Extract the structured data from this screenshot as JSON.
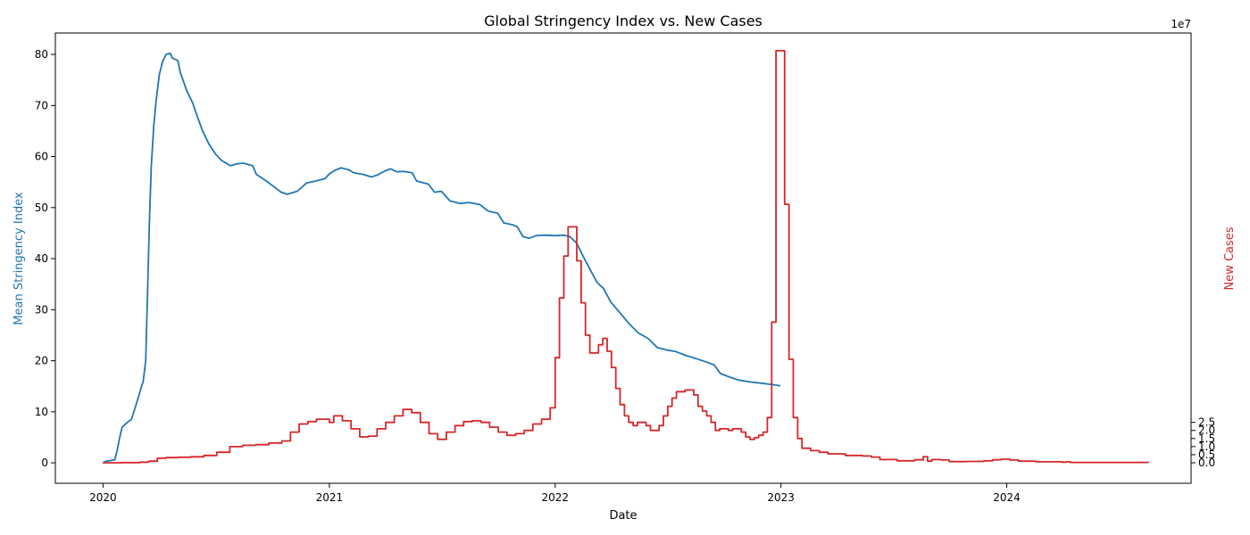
{
  "chart_data": {
    "type": "line",
    "title": "Global Stringency Index vs. New Cases",
    "xlabel": "Date",
    "ylabel_left": "Mean Stringency Index",
    "ylabel_right": "New Cases",
    "right_axis_offset_label": "1e7",
    "x_ticks": [
      "2020",
      "2021",
      "2022",
      "2023",
      "2024"
    ],
    "xlim": [
      "2019-10-16",
      "2024-10-25"
    ],
    "y_left_ticks": [
      "0",
      "10",
      "20",
      "30",
      "40",
      "50",
      "60",
      "70",
      "80"
    ],
    "ylim_left": [
      -4.0,
      84.2
    ],
    "y_right_ticks": [
      "0.0",
      "0.5",
      "1.0",
      "1.5",
      "2.0",
      "2.5"
    ],
    "ylim_right": [
      -1.27,
      26.6
    ],
    "grid": false,
    "colors": {
      "stringency": "#1f77b4",
      "cases": "#d62728"
    },
    "series": [
      {
        "axis": "left",
        "style": "line",
        "points": [
          [
            "2020-01-01",
            0
          ],
          [
            "2020-01-05",
            0.3
          ],
          [
            "2020-01-20",
            0.6
          ],
          [
            "2020-01-24",
            2.5
          ],
          [
            "2020-01-28",
            5
          ],
          [
            "2020-02-01",
            7
          ],
          [
            "2020-02-10",
            8
          ],
          [
            "2020-02-16",
            8.5
          ],
          [
            "2020-02-25",
            12
          ],
          [
            "2020-03-01",
            14
          ],
          [
            "2020-03-06",
            16
          ],
          [
            "2020-03-10",
            20
          ],
          [
            "2020-03-13",
            33
          ],
          [
            "2020-03-16",
            47
          ],
          [
            "2020-03-19",
            58
          ],
          [
            "2020-03-23",
            66
          ],
          [
            "2020-03-27",
            71
          ],
          [
            "2020-04-01",
            76
          ],
          [
            "2020-04-06",
            78.5
          ],
          [
            "2020-04-12",
            80
          ],
          [
            "2020-04-19",
            80.2
          ],
          [
            "2020-04-22",
            79.3
          ],
          [
            "2020-05-01",
            78.8
          ],
          [
            "2020-05-05",
            76.5
          ],
          [
            "2020-05-15",
            73
          ],
          [
            "2020-05-25",
            70.5
          ],
          [
            "2020-06-01",
            68
          ],
          [
            "2020-06-10",
            65
          ],
          [
            "2020-06-20",
            62.5
          ],
          [
            "2020-07-01",
            60.5
          ],
          [
            "2020-07-10",
            59.3
          ],
          [
            "2020-07-25",
            58.2
          ],
          [
            "2020-08-05",
            58.6
          ],
          [
            "2020-08-15",
            58.7
          ],
          [
            "2020-08-30",
            58.2
          ],
          [
            "2020-09-05",
            56.5
          ],
          [
            "2020-09-20",
            55.3
          ],
          [
            "2020-10-01",
            54.3
          ],
          [
            "2020-10-15",
            53
          ],
          [
            "2020-10-25",
            52.6
          ],
          [
            "2020-11-10",
            53.2
          ],
          [
            "2020-11-25",
            54.8
          ],
          [
            "2020-12-10",
            55.2
          ],
          [
            "2020-12-25",
            55.7
          ],
          [
            "2021-01-01",
            56.6
          ],
          [
            "2021-01-10",
            57.3
          ],
          [
            "2021-01-20",
            57.8
          ],
          [
            "2021-02-01",
            57.4
          ],
          [
            "2021-02-10",
            56.8
          ],
          [
            "2021-02-25",
            56.5
          ],
          [
            "2021-03-10",
            56
          ],
          [
            "2021-03-20",
            56.4
          ],
          [
            "2021-04-01",
            57.2
          ],
          [
            "2021-04-10",
            57.6
          ],
          [
            "2021-04-20",
            57
          ],
          [
            "2021-05-01",
            57.1
          ],
          [
            "2021-05-15",
            56.8
          ],
          [
            "2021-05-22",
            55.2
          ],
          [
            "2021-06-10",
            54.6
          ],
          [
            "2021-06-20",
            53
          ],
          [
            "2021-07-01",
            53.2
          ],
          [
            "2021-07-15",
            51.3
          ],
          [
            "2021-08-01",
            50.8
          ],
          [
            "2021-08-15",
            51
          ],
          [
            "2021-09-01",
            50.6
          ],
          [
            "2021-09-15",
            49.3
          ],
          [
            "2021-09-30",
            48.9
          ],
          [
            "2021-10-10",
            47
          ],
          [
            "2021-10-25",
            46.6
          ],
          [
            "2021-11-01",
            46.2
          ],
          [
            "2021-11-10",
            44.3
          ],
          [
            "2021-11-20",
            44
          ],
          [
            "2021-12-01",
            44.5
          ],
          [
            "2021-12-15",
            44.6
          ],
          [
            "2022-01-01",
            44.5
          ],
          [
            "2022-01-15",
            44.6
          ],
          [
            "2022-01-25",
            44.3
          ],
          [
            "2022-02-05",
            43
          ],
          [
            "2022-02-15",
            40.5
          ],
          [
            "2022-02-25",
            38.2
          ],
          [
            "2022-03-10",
            35.3
          ],
          [
            "2022-03-20",
            34.2
          ],
          [
            "2022-04-01",
            31.5
          ],
          [
            "2022-04-15",
            29.5
          ],
          [
            "2022-05-01",
            27.2
          ],
          [
            "2022-05-15",
            25.5
          ],
          [
            "2022-06-01",
            24.3
          ],
          [
            "2022-06-15",
            22.6
          ],
          [
            "2022-07-01",
            22.1
          ],
          [
            "2022-07-15",
            21.8
          ],
          [
            "2022-08-01",
            21
          ],
          [
            "2022-08-15",
            20.5
          ],
          [
            "2022-09-01",
            19.8
          ],
          [
            "2022-09-15",
            19.2
          ],
          [
            "2022-09-25",
            17.5
          ],
          [
            "2022-10-10",
            16.8
          ],
          [
            "2022-10-25",
            16.2
          ],
          [
            "2022-11-10",
            15.9
          ],
          [
            "2022-12-01",
            15.6
          ],
          [
            "2022-12-20",
            15.3
          ],
          [
            "2022-12-31",
            15.1
          ]
        ]
      },
      {
        "axis": "right",
        "style": "step",
        "points": [
          [
            "2020-01-01",
            0
          ],
          [
            "2020-02-01",
            0.01
          ],
          [
            "2020-03-01",
            0.04
          ],
          [
            "2020-03-15",
            0.1
          ],
          [
            "2020-03-29",
            0.28
          ],
          [
            "2020-04-12",
            0.32
          ],
          [
            "2020-05-01",
            0.34
          ],
          [
            "2020-05-22",
            0.37
          ],
          [
            "2020-06-12",
            0.45
          ],
          [
            "2020-07-03",
            0.65
          ],
          [
            "2020-07-24",
            1.0
          ],
          [
            "2020-08-14",
            1.08
          ],
          [
            "2020-09-04",
            1.12
          ],
          [
            "2020-09-25",
            1.22
          ],
          [
            "2020-10-16",
            1.35
          ],
          [
            "2020-10-30",
            1.9
          ],
          [
            "2020-11-13",
            2.4
          ],
          [
            "2020-11-27",
            2.55
          ],
          [
            "2020-12-11",
            2.7
          ],
          [
            "2021-01-01",
            2.5
          ],
          [
            "2021-01-08",
            2.9
          ],
          [
            "2021-01-22",
            2.6
          ],
          [
            "2021-02-05",
            2.1
          ],
          [
            "2021-02-19",
            1.6
          ],
          [
            "2021-03-05",
            1.65
          ],
          [
            "2021-03-19",
            2.1
          ],
          [
            "2021-04-02",
            2.5
          ],
          [
            "2021-04-16",
            2.9
          ],
          [
            "2021-04-30",
            3.3
          ],
          [
            "2021-05-14",
            3.1
          ],
          [
            "2021-05-28",
            2.5
          ],
          [
            "2021-06-11",
            1.8
          ],
          [
            "2021-06-25",
            1.45
          ],
          [
            "2021-07-09",
            1.9
          ],
          [
            "2021-07-23",
            2.3
          ],
          [
            "2021-08-06",
            2.55
          ],
          [
            "2021-08-20",
            2.6
          ],
          [
            "2021-09-03",
            2.5
          ],
          [
            "2021-09-17",
            2.2
          ],
          [
            "2021-10-01",
            1.9
          ],
          [
            "2021-10-15",
            1.7
          ],
          [
            "2021-10-29",
            1.8
          ],
          [
            "2021-11-12",
            2.0
          ],
          [
            "2021-11-26",
            2.4
          ],
          [
            "2021-12-10",
            2.7
          ],
          [
            "2021-12-24",
            3.4
          ],
          [
            "2022-01-01",
            6.5
          ],
          [
            "2022-01-08",
            10.2
          ],
          [
            "2022-01-15",
            12.8
          ],
          [
            "2022-01-22",
            14.6
          ],
          [
            "2022-02-05",
            12.5
          ],
          [
            "2022-02-12",
            9.9
          ],
          [
            "2022-02-19",
            7.9
          ],
          [
            "2022-02-26",
            6.8
          ],
          [
            "2022-03-12",
            7.3
          ],
          [
            "2022-03-19",
            7.7
          ],
          [
            "2022-03-26",
            6.9
          ],
          [
            "2022-04-02",
            5.9
          ],
          [
            "2022-04-09",
            4.6
          ],
          [
            "2022-04-16",
            3.6
          ],
          [
            "2022-04-23",
            2.9
          ],
          [
            "2022-04-30",
            2.5
          ],
          [
            "2022-05-07",
            2.3
          ],
          [
            "2022-05-14",
            2.5
          ],
          [
            "2022-05-28",
            2.3
          ],
          [
            "2022-06-04",
            2.0
          ],
          [
            "2022-06-18",
            2.3
          ],
          [
            "2022-06-25",
            2.9
          ],
          [
            "2022-07-02",
            3.5
          ],
          [
            "2022-07-09",
            4.0
          ],
          [
            "2022-07-16",
            4.4
          ],
          [
            "2022-07-30",
            4.5
          ],
          [
            "2022-08-13",
            4.2
          ],
          [
            "2022-08-20",
            3.5
          ],
          [
            "2022-08-27",
            3.2
          ],
          [
            "2022-09-03",
            2.9
          ],
          [
            "2022-09-10",
            2.5
          ],
          [
            "2022-09-17",
            2.0
          ],
          [
            "2022-09-24",
            2.1
          ],
          [
            "2022-10-08",
            2.0
          ],
          [
            "2022-10-15",
            2.1
          ],
          [
            "2022-10-29",
            1.9
          ],
          [
            "2022-11-05",
            1.6
          ],
          [
            "2022-11-12",
            1.45
          ],
          [
            "2022-11-19",
            1.55
          ],
          [
            "2022-11-26",
            1.7
          ],
          [
            "2022-12-03",
            1.9
          ],
          [
            "2022-12-10",
            2.8
          ],
          [
            "2022-12-17",
            8.7
          ],
          [
            "2022-12-24",
            25.5
          ],
          [
            "2023-01-07",
            16.0
          ],
          [
            "2023-01-14",
            6.4
          ],
          [
            "2023-01-21",
            2.8
          ],
          [
            "2023-01-28",
            1.5
          ],
          [
            "2023-02-04",
            0.9
          ],
          [
            "2023-02-18",
            0.75
          ],
          [
            "2023-03-04",
            0.65
          ],
          [
            "2023-03-18",
            0.55
          ],
          [
            "2023-04-15",
            0.45
          ],
          [
            "2023-05-13",
            0.42
          ],
          [
            "2023-05-27",
            0.35
          ],
          [
            "2023-06-10",
            0.2
          ],
          [
            "2023-07-08",
            0.12
          ],
          [
            "2023-08-05",
            0.18
          ],
          [
            "2023-08-19",
            0.38
          ],
          [
            "2023-08-26",
            0.1
          ],
          [
            "2023-09-02",
            0.2
          ],
          [
            "2023-09-16",
            0.17
          ],
          [
            "2023-09-30",
            0.07
          ],
          [
            "2023-10-28",
            0.08
          ],
          [
            "2023-11-25",
            0.12
          ],
          [
            "2023-12-09",
            0.18
          ],
          [
            "2023-12-23",
            0.22
          ],
          [
            "2024-01-06",
            0.17
          ],
          [
            "2024-01-20",
            0.1
          ],
          [
            "2024-02-17",
            0.06
          ],
          [
            "2024-03-30",
            0.04
          ],
          [
            "2024-04-06",
            0.06
          ],
          [
            "2024-04-13",
            0.02
          ],
          [
            "2024-08-10",
            0.02
          ],
          [
            "2024-08-17",
            0.0
          ]
        ]
      }
    ]
  }
}
